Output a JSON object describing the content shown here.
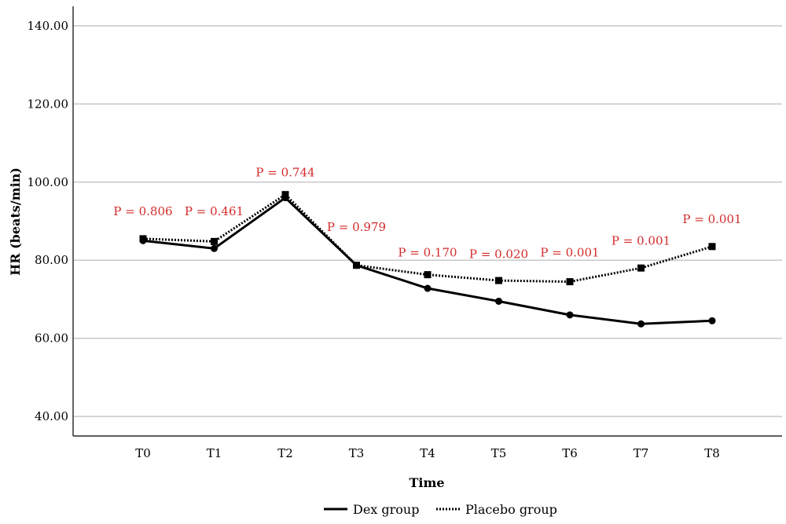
{
  "chart_data": {
    "type": "line",
    "title": "",
    "xlabel": "Time",
    "ylabel": "HR (beats/min)",
    "categories": [
      "T0",
      "T1",
      "T2",
      "T3",
      "T4",
      "T5",
      "T6",
      "T7",
      "T8"
    ],
    "yticks": [
      "40.00",
      "60.00",
      "80.00",
      "100.00",
      "120.00",
      "140.00"
    ],
    "ylim": [
      35,
      145
    ],
    "grid": "horizontal",
    "legend_position": "bottom",
    "series": [
      {
        "name": "Dex group",
        "style": "solid",
        "marker": "circle",
        "values": [
          85.0,
          83.0,
          96.0,
          78.7,
          72.8,
          69.5,
          66.0,
          63.7,
          64.5
        ]
      },
      {
        "name": "Placebo group",
        "style": "dotted",
        "marker": "square",
        "values": [
          85.5,
          84.8,
          96.8,
          78.7,
          76.3,
          74.8,
          74.5,
          78.0,
          83.5
        ]
      }
    ],
    "annotations": [
      {
        "text": "P = 0.806",
        "category": "T0",
        "y": 91.5
      },
      {
        "text": "P = 0.461",
        "category": "T1",
        "y": 91.5
      },
      {
        "text": "P = 0.744",
        "category": "T2",
        "y": 101.5
      },
      {
        "text": "P = 0.979",
        "category": "T3",
        "y": 87.5
      },
      {
        "text": "P = 0.170",
        "category": "T4",
        "y": 81.0
      },
      {
        "text": "P = 0.020",
        "category": "T5",
        "y": 80.5
      },
      {
        "text": "P = 0.001",
        "category": "T6",
        "y": 81.0
      },
      {
        "text": "P = 0.001",
        "category": "T7",
        "y": 84.0
      },
      {
        "text": "P = 0.001",
        "category": "T8",
        "y": 89.5
      }
    ],
    "colors": {
      "series": "#000000",
      "annotation": "#d42a2a",
      "grid": "#c8c8c8"
    }
  }
}
